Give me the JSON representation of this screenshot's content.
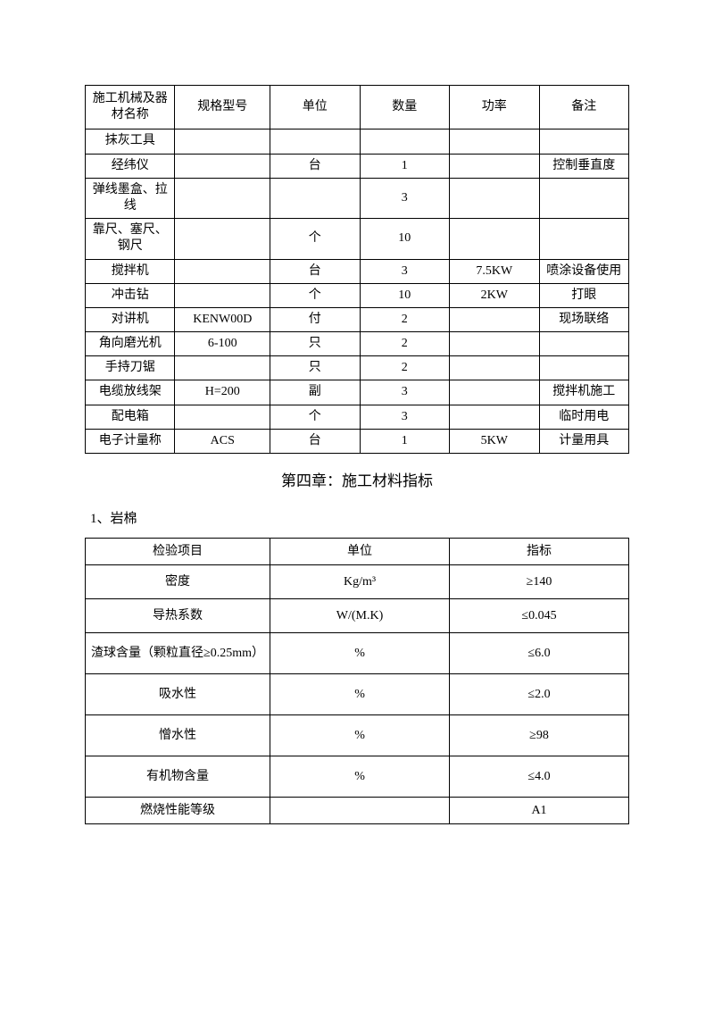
{
  "equipment_table": {
    "headers": {
      "name": "施工机械及器材名称",
      "model": "规格型号",
      "unit": "单位",
      "quantity": "数量",
      "power": "功率",
      "remark": "备注"
    },
    "rows": [
      {
        "name": "抹灰工具",
        "model": "",
        "unit": "",
        "quantity": "",
        "power": "",
        "remark": ""
      },
      {
        "name": "经纬仪",
        "model": "",
        "unit": "台",
        "quantity": "1",
        "power": "",
        "remark": "控制垂直度"
      },
      {
        "name": "弹线墨盒、拉线",
        "model": "",
        "unit": "",
        "quantity": "3",
        "power": "",
        "remark": ""
      },
      {
        "name": "靠尺、塞尺、钢尺",
        "model": "",
        "unit": "个",
        "quantity": "10",
        "power": "",
        "remark": ""
      },
      {
        "name": "搅拌机",
        "model": "",
        "unit": "台",
        "quantity": "3",
        "power": "7.5KW",
        "remark": "喷涂设备使用"
      },
      {
        "name": "冲击钻",
        "model": "",
        "unit": "个",
        "quantity": "10",
        "power": "2KW",
        "remark": "打眼"
      },
      {
        "name": "对讲机",
        "model": "KENW00D",
        "unit": "付",
        "quantity": "2",
        "power": "",
        "remark": "现场联络"
      },
      {
        "name": "角向磨光机",
        "model": "6-100",
        "unit": "只",
        "quantity": "2",
        "power": "",
        "remark": ""
      },
      {
        "name": "手持刀锯",
        "model": "",
        "unit": "只",
        "quantity": "2",
        "power": "",
        "remark": ""
      },
      {
        "name": "电缆放线架",
        "model": "H=200",
        "unit": "副",
        "quantity": "3",
        "power": "",
        "remark": "搅拌机施工"
      },
      {
        "name": "配电箱",
        "model": "",
        "unit": "个",
        "quantity": "3",
        "power": "",
        "remark": "临时用电"
      },
      {
        "name": "电子计量称",
        "model": "ACS",
        "unit": "台",
        "quantity": "1",
        "power": "5KW",
        "remark": "计量用具"
      }
    ]
  },
  "chapter_title": "第四章：施工材料指标",
  "section1_title": "1、岩棉",
  "material_table": {
    "headers": {
      "item": "检验项目",
      "unit": "单位",
      "indicator": "指标"
    },
    "rows": [
      {
        "item": "密度",
        "unit": "Kg/m³",
        "indicator": "≥140"
      },
      {
        "item": "导热系数",
        "unit": "W/(M.K)",
        "indicator": "≤0.045"
      },
      {
        "item": "渣球含量（颗粒直径≥0.25mm）",
        "unit": "%",
        "indicator": "≤6.0"
      },
      {
        "item": "吸水性",
        "unit": "%",
        "indicator": "≤2.0"
      },
      {
        "item": "憎水性",
        "unit": "%",
        "indicator": "≥98"
      },
      {
        "item": "有机物含量",
        "unit": "%",
        "indicator": "≤4.0"
      },
      {
        "item": "燃烧性能等级",
        "unit": "",
        "indicator": "A1"
      }
    ]
  }
}
